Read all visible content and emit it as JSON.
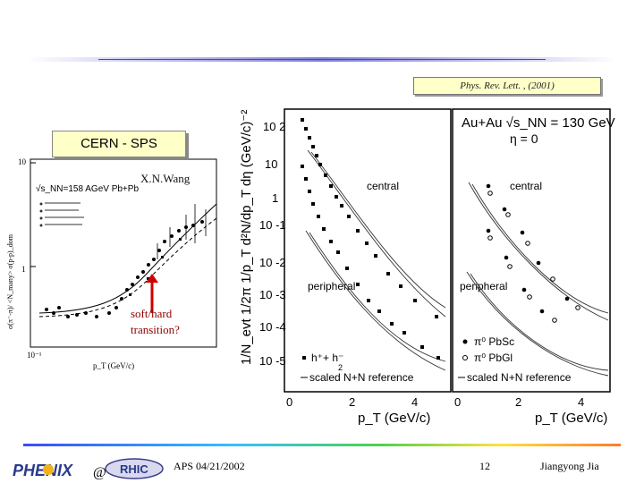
{
  "header": {
    "citation": "Phys. Rev. Lett. , (2001)"
  },
  "left_panel": {
    "box_label": "CERN - SPS",
    "author_label": "X.N.Wang",
    "annotation_line1": "soft/hard",
    "annotation_line2": "transition?",
    "plot": {
      "y_axis_label": "σ(π⁻-π)/ <N_many> σ(p-p)_dom",
      "y_ticks": [
        "10",
        "1",
        "10⁻¹"
      ],
      "x_axis_label": "p_T (GeV/c)",
      "inner_label": "√s_NN=158 AGeV Pb+Pb"
    }
  },
  "right_panel": {
    "y_axis_label": "1/N_evt 1/2π 1/p_T d²N/dp_T dη (GeV/c)⁻²",
    "y_ticks": [
      "10 2",
      "10",
      "1",
      "10 -1",
      "10 -2",
      "10 -3",
      "10 -4",
      "10 -5"
    ],
    "left_x_ticks": [
      "0",
      "2",
      "4"
    ],
    "right_x_ticks": [
      "0",
      "2",
      "4"
    ],
    "x_axis_label": "p_T (GeV/c)",
    "legend_title": "Au+Au √s_NN = 130 GeV",
    "eta_label": "η = 0",
    "central_label": "central",
    "peripheral_label": "peripheral",
    "left_legend": [
      "h⁺+ h⁻",
      "2",
      "scaled N+N reference"
    ],
    "right_legend": [
      "π⁰ PbSc",
      "π⁰ PbGl",
      "scaled N+N reference"
    ]
  },
  "footer": {
    "logo_text": "PHENIX",
    "at_symbol": "@",
    "rhic_text": "RHIC",
    "date": "APS 04/21/2002",
    "page_number": "12",
    "author": "Jiangyong Jia"
  },
  "colors": {
    "highlight_box": "#ffffc8",
    "annotation": "#8b0000",
    "rule_gradient": [
      "#3a4bff",
      "#34c0ff",
      "#4fd14a",
      "#ffe23a",
      "#ff7a2a"
    ]
  }
}
